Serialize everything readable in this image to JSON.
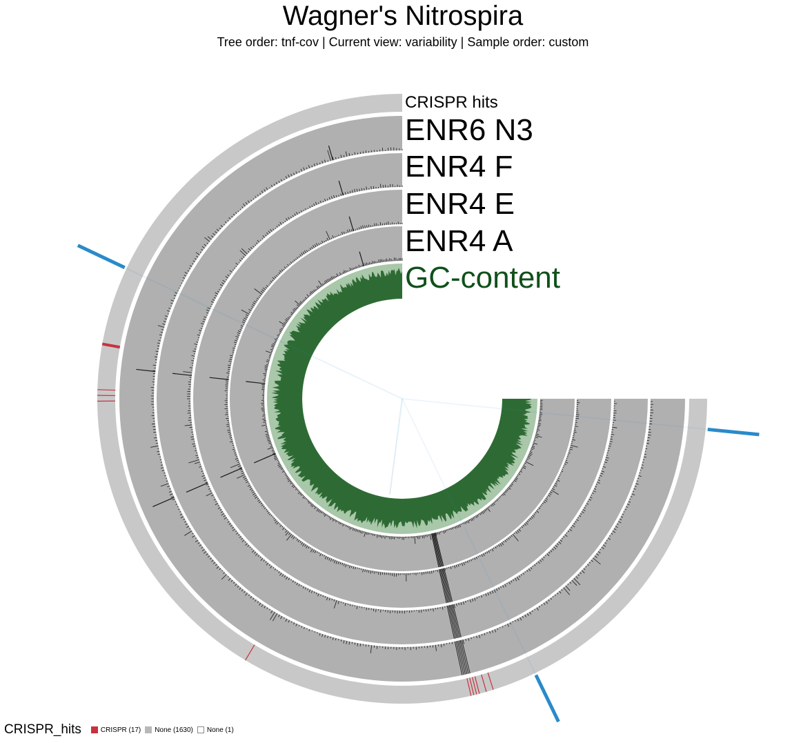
{
  "header": {
    "title": "Wagner's Nitrospira",
    "subtitle": "Tree order: tnf-cov | Current view: variability | Sample order: custom"
  },
  "layers": [
    {
      "id": "crispr",
      "label": "CRISPR hits",
      "color": "#c8c8c8"
    },
    {
      "id": "enr6-n3",
      "label": "ENR6 N3",
      "color": "#b0b0b0"
    },
    {
      "id": "enr4-f",
      "label": "ENR4 F",
      "color": "#b0b0b0"
    },
    {
      "id": "enr4-e",
      "label": "ENR4 E",
      "color": "#b0b0b0"
    },
    {
      "id": "enr4-a",
      "label": "ENR4 A",
      "color": "#b0b0b0"
    },
    {
      "id": "gc-content",
      "label": "GC-content",
      "color": "#2e6b34",
      "background": "#a9c7a9",
      "label_color": "#11501b"
    }
  ],
  "colors": {
    "crispr_mark": "#c8313e",
    "tree_branch": "#2a8ac9",
    "bar": "#1a1a1a"
  },
  "legend": {
    "title": "CRISPR_hits",
    "items": [
      {
        "label": "CRISPR (17)",
        "color": "#c8313e"
      },
      {
        "label": "None (1630)",
        "color": "#b8b8b8"
      },
      {
        "label": "None (1)",
        "color": "#ffffff"
      }
    ]
  }
}
